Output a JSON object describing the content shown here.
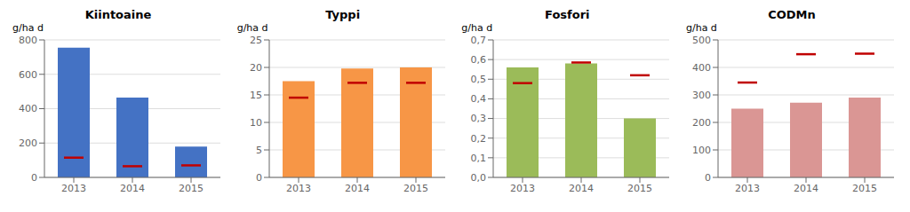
{
  "chart_data": [
    {
      "type": "bar",
      "title": "Kiintoaine",
      "ylabel": "g/ha d",
      "categories": [
        "2013",
        "2014",
        "2015"
      ],
      "series": [
        {
          "type": "bar",
          "color": "#4472C4",
          "values": [
            755,
            465,
            180
          ]
        },
        {
          "type": "scatter",
          "marker": "line",
          "color": "#C00000",
          "values": [
            115,
            65,
            70
          ]
        }
      ],
      "ylim": [
        0,
        800
      ],
      "yticks": [
        0,
        200,
        400,
        600,
        800
      ],
      "grid": true
    },
    {
      "type": "bar",
      "title": "Typpi",
      "ylabel": "g/ha d",
      "categories": [
        "2013",
        "2014",
        "2015"
      ],
      "series": [
        {
          "type": "bar",
          "color": "#F79646",
          "values": [
            17.5,
            19.8,
            20.0
          ]
        },
        {
          "type": "scatter",
          "marker": "line",
          "color": "#C00000",
          "values": [
            14.5,
            17.2,
            17.2
          ]
        }
      ],
      "ylim": [
        0,
        25
      ],
      "yticks": [
        0,
        5,
        10,
        15,
        20,
        25
      ],
      "grid": true
    },
    {
      "type": "bar",
      "title": "Fosfori",
      "ylabel": "g/ha d",
      "categories": [
        "2013",
        "2014",
        "2015"
      ],
      "series": [
        {
          "type": "bar",
          "color": "#9BBB59",
          "values": [
            0.56,
            0.58,
            0.3
          ]
        },
        {
          "type": "scatter",
          "marker": "line",
          "color": "#C00000",
          "values": [
            0.48,
            0.585,
            0.52
          ]
        }
      ],
      "ylim": [
        0.0,
        0.7
      ],
      "yticks": [
        {
          "value": 0.0,
          "label": "0,0"
        },
        {
          "value": 0.1,
          "label": "0,1"
        },
        {
          "value": 0.2,
          "label": "0,2"
        },
        {
          "value": 0.3,
          "label": "0,3"
        },
        {
          "value": 0.4,
          "label": "0,4"
        },
        {
          "value": 0.5,
          "label": "0,5"
        },
        {
          "value": 0.6,
          "label": "0,6"
        },
        {
          "value": 0.7,
          "label": "0,7"
        }
      ],
      "grid": true
    },
    {
      "type": "bar",
      "title": "CODMn",
      "ylabel": "g/ha d",
      "categories": [
        "2013",
        "2014",
        "2015"
      ],
      "series": [
        {
          "type": "bar",
          "color": "#DA9694",
          "values": [
            250,
            272,
            290
          ]
        },
        {
          "type": "scatter",
          "marker": "line",
          "color": "#C00000",
          "values": [
            345,
            448,
            450
          ]
        }
      ],
      "ylim": [
        0,
        500
      ],
      "yticks": [
        0,
        100,
        200,
        300,
        400,
        500
      ],
      "grid": true
    }
  ]
}
